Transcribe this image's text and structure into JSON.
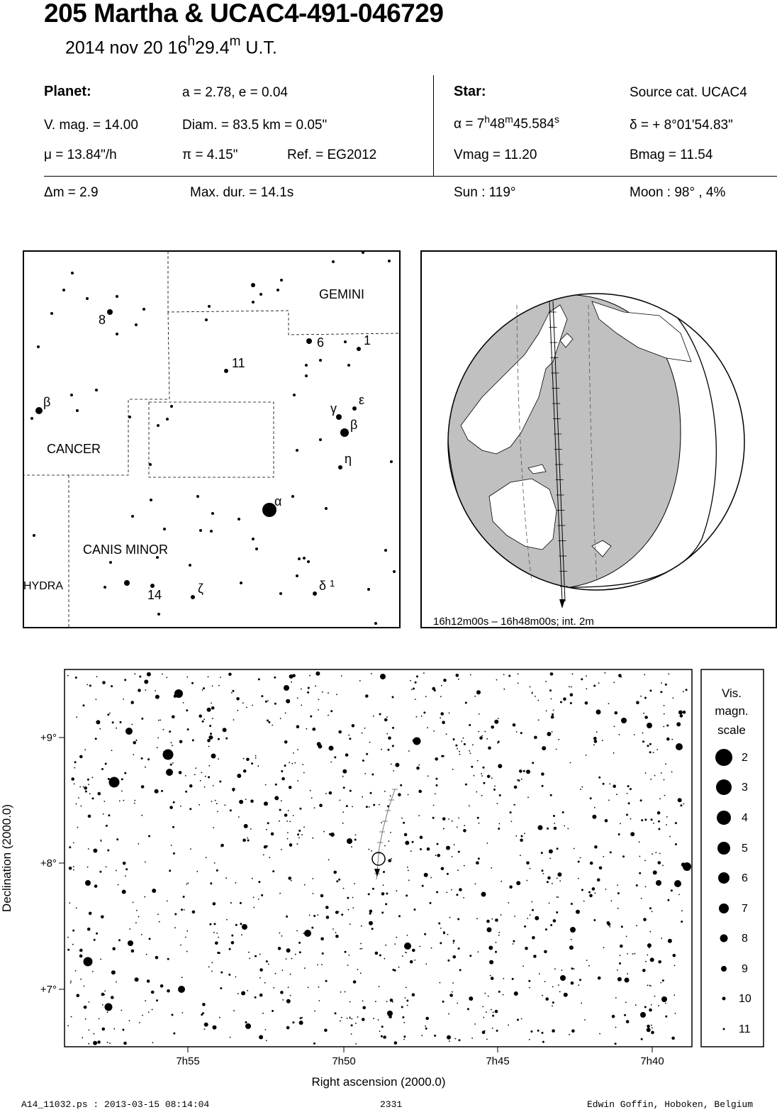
{
  "header": {
    "title": "205 Martha  &  UCAC4-491-046729",
    "date_prefix": "2014 nov 20  16",
    "date_h": "h",
    "date_mid": "29.4",
    "date_m": "m",
    "date_suffix": " U.T."
  },
  "planet": {
    "heading": "Planet:",
    "orbit": "a = 2.78, e = 0.04",
    "vmag": "V. mag. = 14.00",
    "diam": "Diam. = 83.5 km = 0.05\"",
    "mu": "μ =  13.84\"/h",
    "pi": "π =  4.15\"",
    "ref": "Ref. = EG2012"
  },
  "star": {
    "heading": "Star:",
    "source": "Source cat.  UCAC4",
    "alpha_prefix": "α =  7",
    "alpha_h": "h",
    "alpha_mid": "48",
    "alpha_m": "m",
    "alpha_sec": "45.584",
    "alpha_s": "s",
    "delta": "δ = + 8°01'54.83\"",
    "vmag": "Vmag = 11.20",
    "bmag": "Bmag = 11.54"
  },
  "summary": {
    "dm": "Δm = 2.9",
    "maxdur": "Max. dur. = 14.1s",
    "sun": "Sun : 119°",
    "moon": "Moon :  98° ,  4%"
  },
  "finder": {
    "constellations": [
      "GEMINI",
      "CANCER",
      "CANIS MINOR",
      "HYDRA"
    ],
    "labels": [
      "8",
      "6",
      "1",
      "11",
      "β",
      "γ",
      "ε",
      "β",
      "η",
      "α",
      "14",
      "ζ",
      "δ",
      "1"
    ]
  },
  "globe": {
    "caption": "16h12m00s – 16h48m00s; int.  2m"
  },
  "star_chart": {
    "x_ticks": [
      "7h55",
      "7h50",
      "7h45",
      "7h40"
    ],
    "y_ticks": [
      "+9°",
      "+8°",
      "+7°"
    ],
    "xlabel": "Right ascension (2000.0)",
    "ylabel": "Declination (2000.0)",
    "scale_title": [
      "Vis.",
      "magn.",
      "scale"
    ],
    "scale_mags": [
      "2",
      "3",
      "4",
      "5",
      "6",
      "7",
      "8",
      "9",
      "10",
      "11"
    ]
  },
  "footer": {
    "file": "A14_11032.ps : 2013-03-15 08:14:04",
    "number": "2331",
    "author": "Edwin Goffin, Hoboken, Belgium"
  }
}
